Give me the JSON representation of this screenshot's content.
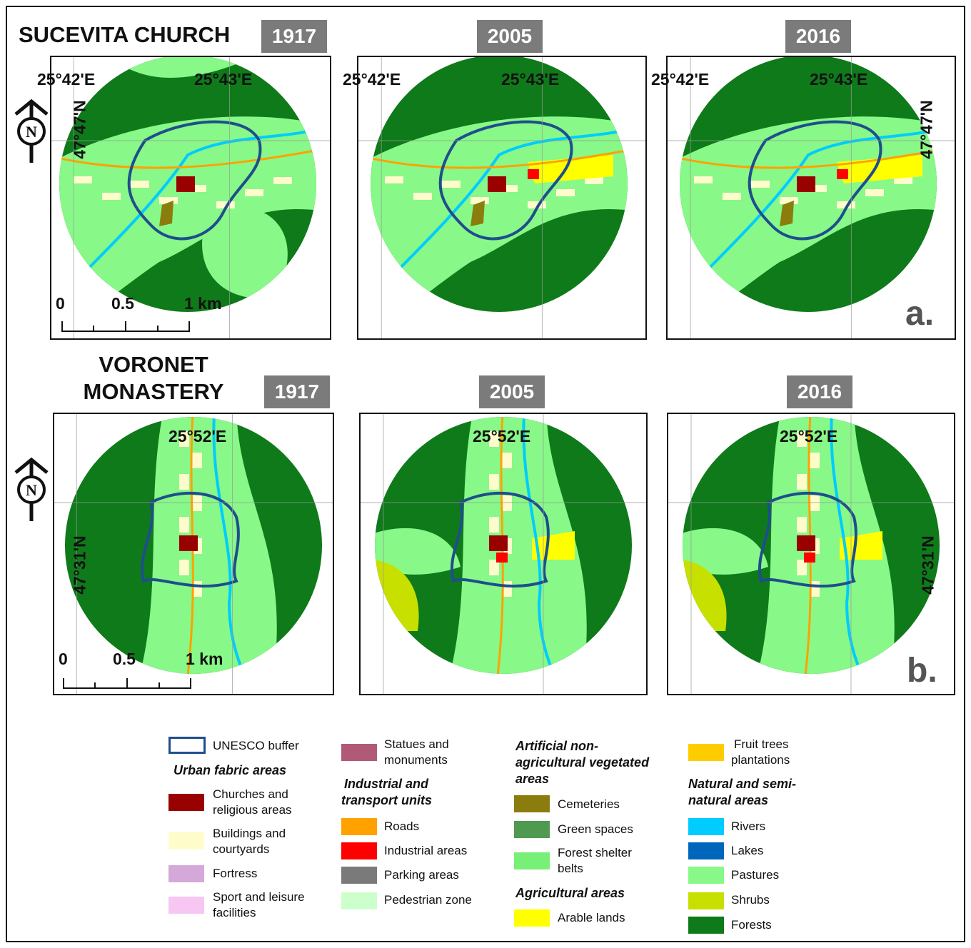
{
  "figure": {
    "row_a": {
      "title": "SUCEVITA CHURCH",
      "letter": "a.",
      "years": [
        "1917",
        "2005",
        "2016"
      ],
      "lon_left": "25°42'E",
      "lon_right": "25°43'E",
      "lat": "47°47'N",
      "scale": {
        "zero": "0",
        "half": "0.5",
        "full": "1 km"
      }
    },
    "row_b": {
      "title_line1": "VORONET",
      "title_line2": "MONASTERY",
      "letter": "b.",
      "years": [
        "1917",
        "2005",
        "2016"
      ],
      "lon": "25°52'E",
      "lat": "47°31'N",
      "scale": {
        "zero": "0",
        "half": "0.5",
        "full": "1 km"
      }
    },
    "north_symbol": "N"
  },
  "legend": {
    "buffer": {
      "label": "UNESCO buffer",
      "color": "#1f4e8c"
    },
    "urban_heading": "Urban fabric areas",
    "churches": {
      "label1": "Churches and",
      "label2": "religious areas",
      "color": "#990000"
    },
    "buildings": {
      "label1": "Buildings and",
      "label2": "courtyards",
      "color": "#fffccc"
    },
    "fortress": {
      "label": "Fortress",
      "color": "#d4a9d9"
    },
    "sport": {
      "label1": "Sport and leisure",
      "label2": "facilities",
      "color": "#f7c6f2"
    },
    "statues": {
      "label1": "Statues and",
      "label2": "monuments",
      "color": "#b05a78"
    },
    "industrial_heading1": "Industrial and",
    "industrial_heading2": "transport units",
    "roads": {
      "label": "Roads",
      "color": "#ffa200"
    },
    "industrial": {
      "label": "Industrial areas",
      "color": "#ff0000"
    },
    "parking": {
      "label": "Parking areas",
      "color": "#7a7a7a"
    },
    "pedestrian": {
      "label": "Pedestrian zone",
      "color": "#ccffcc"
    },
    "artificial_heading1": "Artificial non-",
    "artificial_heading2": "agricultural vegetated",
    "artificial_heading3": "areas",
    "cemeteries": {
      "label": "Cemeteries",
      "color": "#8a7d0e"
    },
    "green": {
      "label": "Green spaces",
      "color": "#4f9a50"
    },
    "shelter": {
      "label1": "Forest shelter",
      "label2": "belts",
      "color": "#78f078"
    },
    "agri_heading": "Agricultural areas",
    "arable": {
      "label": "Arable lands",
      "color": "#ffff00"
    },
    "fruit": {
      "label1": "Fruit trees",
      "label2": "plantations",
      "color": "#ffcc00"
    },
    "natural_heading1": "Natural and semi-",
    "natural_heading2": "natural areas",
    "rivers": {
      "label": "Rivers",
      "color": "#00ccff"
    },
    "lakes": {
      "label": "Lakes",
      "color": "#0066bb"
    },
    "pastures": {
      "label": "Pastures",
      "color": "#88f888"
    },
    "shrubs": {
      "label": "Shrubs",
      "color": "#c8e000"
    },
    "forests": {
      "label": "Forests",
      "color": "#0f7a1a"
    }
  }
}
